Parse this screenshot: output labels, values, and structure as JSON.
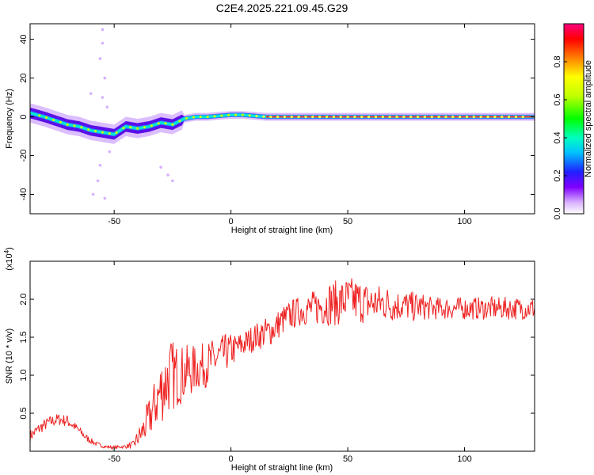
{
  "title": "C2E4.2025.221.09.45.G29",
  "chart_data": [
    {
      "type": "heatmap",
      "xlabel": "Height of straight line (km)",
      "ylabel": "Frequency (Hz)",
      "xlim": [
        -86,
        130
      ],
      "ylim": [
        -50,
        48
      ],
      "xticks": [
        -50,
        0,
        50,
        100
      ],
      "yticks": [
        -40,
        -20,
        0,
        20,
        40
      ],
      "ridge": {
        "x": [
          -86,
          -80,
          -75,
          -70,
          -65,
          -60,
          -55,
          -50,
          -45,
          -40,
          -35,
          -30,
          -25,
          -20,
          -15,
          -10,
          -5,
          0,
          5,
          10,
          15,
          20,
          30,
          40,
          50,
          60,
          70,
          80,
          90,
          100,
          110,
          120,
          130
        ],
        "freq": [
          2,
          0,
          -2,
          -4,
          -5,
          -7,
          -8,
          -9,
          -5,
          -6,
          -5,
          -3,
          -4,
          -1,
          0,
          0,
          0.5,
          1,
          1,
          0.5,
          0,
          0,
          0,
          0,
          0,
          0,
          0,
          0,
          0,
          0,
          0,
          0,
          0
        ]
      },
      "scattered_points": [
        {
          "x": -55,
          "freq": 45
        },
        {
          "x": -55,
          "freq": 38
        },
        {
          "x": -56,
          "freq": 30
        },
        {
          "x": -54,
          "freq": 20
        },
        {
          "x": -55,
          "freq": 10
        },
        {
          "x": -53,
          "freq": 5
        },
        {
          "x": -56,
          "freq": -25
        },
        {
          "x": -57,
          "freq": -33
        },
        {
          "x": -59,
          "freq": -40
        },
        {
          "x": -54,
          "freq": -42
        },
        {
          "x": -30,
          "freq": -26
        },
        {
          "x": -27,
          "freq": -30
        },
        {
          "x": -25,
          "freq": -33
        },
        {
          "x": -60,
          "freq": 12
        },
        {
          "x": -52,
          "freq": -18
        }
      ],
      "colorbar": {
        "label": "Normalized spectral amplitude",
        "ticks": [
          "0.0",
          "0.2",
          "0.4",
          "0.6",
          "0.8"
        ],
        "tick_values": [
          0.0,
          0.2,
          0.4,
          0.6,
          0.8
        ],
        "range": [
          0,
          1
        ]
      }
    },
    {
      "type": "line",
      "xlabel": "Height of straight line (km)",
      "ylabel": "SNR (10 * v/v)",
      "scale_label": "(x10",
      "scale_exp": "4",
      "scale_close": ")",
      "xlim": [
        -86,
        130
      ],
      "ylim": [
        0,
        2.5
      ],
      "xticks": [
        -50,
        0,
        50,
        100
      ],
      "yticks": [
        "0.5",
        "1.0",
        "1.5",
        "2.0"
      ],
      "ytick_values": [
        0.5,
        1.0,
        1.5,
        2.0
      ],
      "color": "#ee2222",
      "series": [
        {
          "x": [
            -86,
            -82,
            -78,
            -74,
            -70,
            -66,
            -62,
            -58,
            -54,
            -50,
            -46,
            -42,
            -38,
            -34,
            -30,
            -26,
            -22,
            -18,
            -14,
            -10,
            -6,
            -2,
            2,
            6,
            10,
            14,
            18,
            22,
            26,
            30,
            34,
            38,
            42,
            46,
            50,
            54,
            58,
            62,
            66,
            70,
            74,
            78,
            82,
            86,
            90,
            94,
            98,
            102,
            106,
            110,
            114,
            118,
            122,
            126,
            130
          ],
          "values": [
            0.2,
            0.3,
            0.38,
            0.42,
            0.4,
            0.3,
            0.18,
            0.1,
            0.06,
            0.05,
            0.06,
            0.08,
            0.25,
            0.5,
            0.8,
            1.0,
            1.0,
            1.05,
            1.1,
            1.15,
            1.22,
            1.3,
            1.35,
            1.42,
            1.5,
            1.55,
            1.6,
            1.72,
            1.8,
            1.85,
            1.88,
            1.9,
            1.95,
            1.95,
            2.0,
            1.98,
            1.95,
            1.95,
            1.95,
            1.92,
            1.92,
            1.9,
            1.9,
            1.88,
            1.88,
            1.88,
            1.88,
            1.88,
            1.88,
            1.88,
            1.88,
            1.88,
            1.88,
            1.88,
            1.88
          ],
          "noise": [
            0.08,
            0.08,
            0.08,
            0.08,
            0.08,
            0.06,
            0.05,
            0.03,
            0.02,
            0.02,
            0.02,
            0.05,
            0.18,
            0.3,
            0.45,
            0.5,
            0.4,
            0.35,
            0.3,
            0.3,
            0.28,
            0.25,
            0.2,
            0.18,
            0.18,
            0.2,
            0.2,
            0.2,
            0.2,
            0.2,
            0.22,
            0.25,
            0.3,
            0.3,
            0.3,
            0.3,
            0.28,
            0.25,
            0.25,
            0.22,
            0.2,
            0.2,
            0.18,
            0.15,
            0.15,
            0.15,
            0.15,
            0.15,
            0.15,
            0.15,
            0.15,
            0.15,
            0.15,
            0.15,
            0.15
          ]
        }
      ]
    }
  ]
}
